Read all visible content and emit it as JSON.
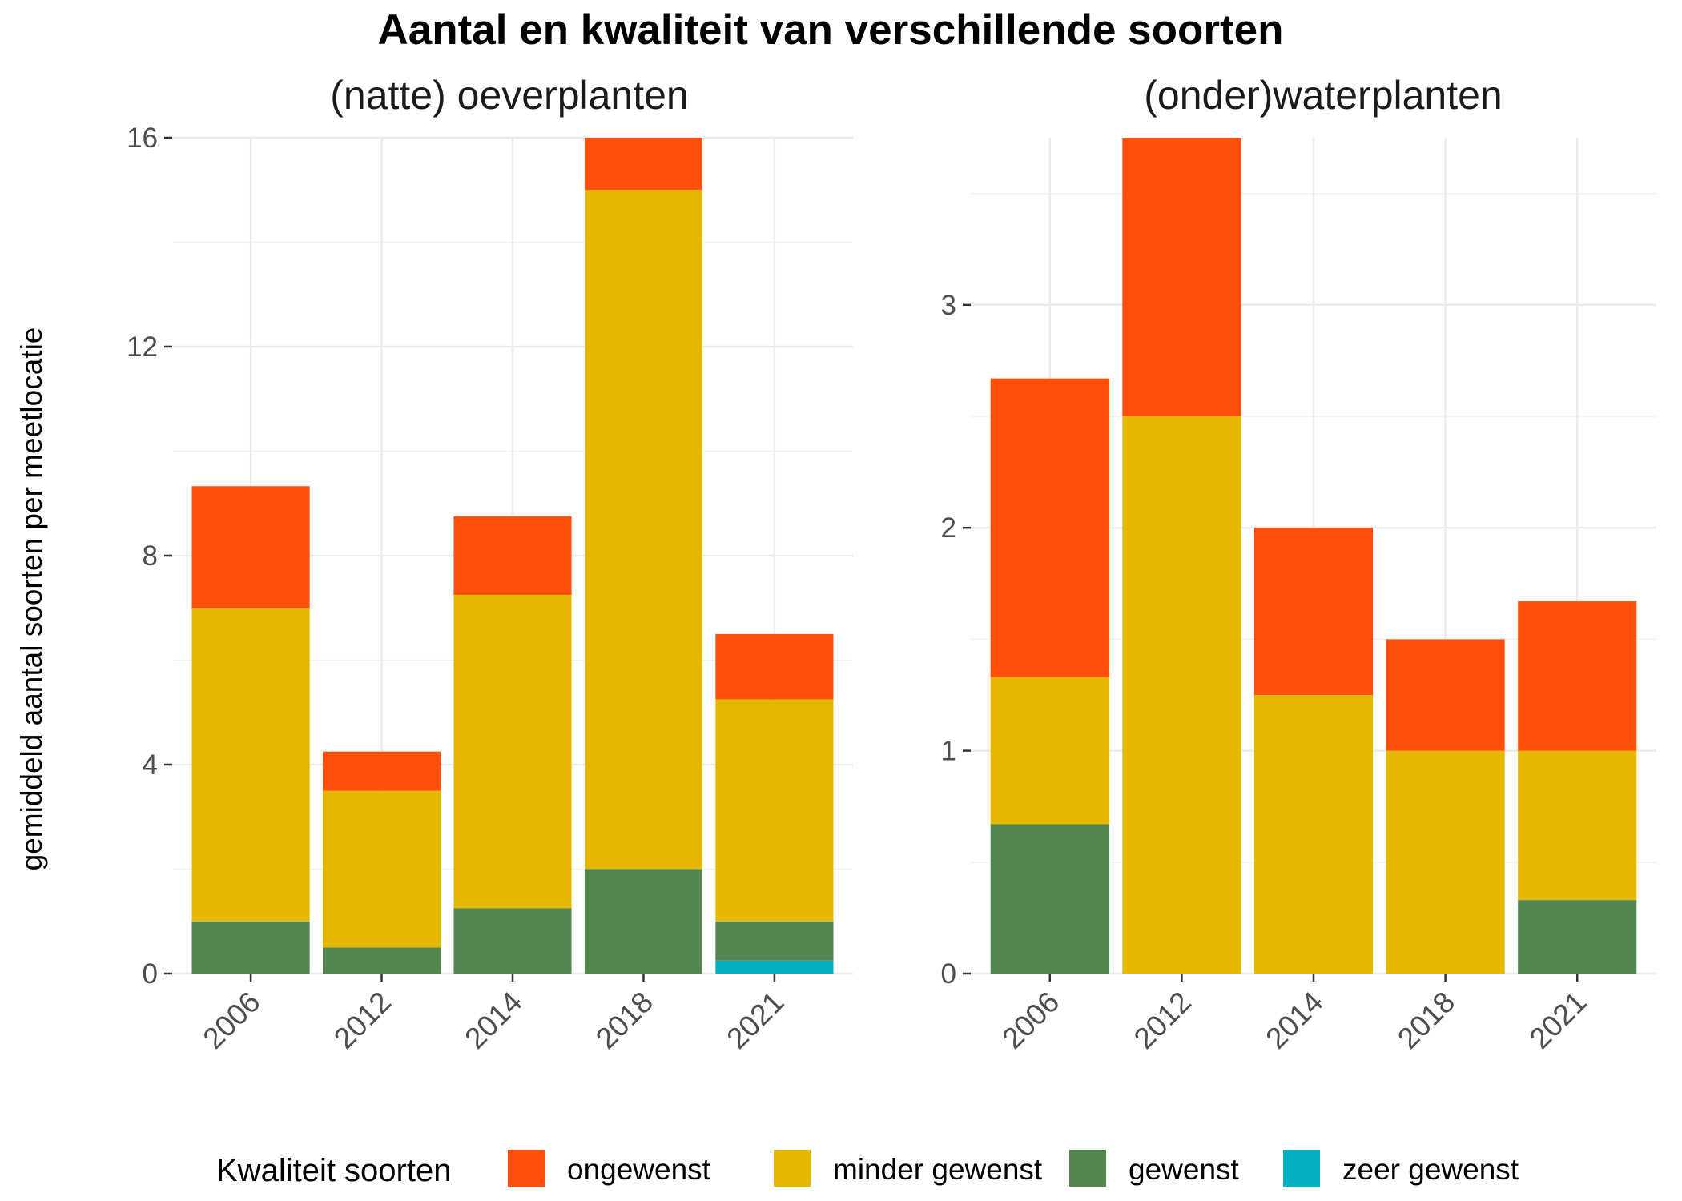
{
  "title": "Aantal en kwaliteit van verschillende soorten",
  "ylabel": "gemiddeld aantal soorten per meetlocatie",
  "legend": {
    "title": "Kwaliteit soorten",
    "position": "bottom",
    "entries": [
      {
        "label": "ongewenst",
        "color": "#FF4F0A"
      },
      {
        "label": "minder gewenst",
        "color": "#E5B800"
      },
      {
        "label": "gewenst",
        "color": "#53874F"
      },
      {
        "label": "zeer gewenst",
        "color": "#00B0C0"
      }
    ]
  },
  "chart_data": [
    {
      "type": "bar",
      "stacked": true,
      "title": "(natte) oeverplanten",
      "xlabel": "",
      "ylabel": "gemiddeld aantal soorten per meetlocatie",
      "categories": [
        "2006",
        "2012",
        "2014",
        "2018",
        "2021"
      ],
      "ylim": [
        0,
        16
      ],
      "yticks": [
        0,
        4,
        8,
        12,
        16
      ],
      "ytick_labels": [
        "0",
        "4",
        "8",
        "12",
        "16"
      ],
      "grid": true,
      "series": [
        {
          "name": "zeer gewenst",
          "color": "#00B0C0",
          "values": [
            0,
            0,
            0,
            0,
            0.25
          ]
        },
        {
          "name": "gewenst",
          "color": "#53874F",
          "values": [
            1.0,
            0.5,
            1.25,
            2.0,
            0.75
          ]
        },
        {
          "name": "minder gewenst",
          "color": "#E5B800",
          "values": [
            6.0,
            3.0,
            6.0,
            13.0,
            4.25
          ]
        },
        {
          "name": "ongewenst",
          "color": "#FF4F0A",
          "values": [
            2.33,
            0.75,
            1.5,
            1.0,
            1.25
          ]
        }
      ]
    },
    {
      "type": "bar",
      "stacked": true,
      "title": "(onder)waterplanten",
      "xlabel": "",
      "ylabel": "",
      "categories": [
        "2006",
        "2012",
        "2014",
        "2018",
        "2021"
      ],
      "ylim": [
        0,
        3.75
      ],
      "yticks": [
        0,
        1,
        2,
        3
      ],
      "ytick_labels": [
        "0",
        "1",
        "2",
        "3"
      ],
      "grid": true,
      "series": [
        {
          "name": "zeer gewenst",
          "color": "#00B0C0",
          "values": [
            0,
            0,
            0,
            0,
            0
          ]
        },
        {
          "name": "gewenst",
          "color": "#53874F",
          "values": [
            0.67,
            0,
            0,
            0,
            0.33
          ]
        },
        {
          "name": "minder gewenst",
          "color": "#E5B800",
          "values": [
            0.66,
            2.5,
            1.25,
            1.0,
            0.67
          ]
        },
        {
          "name": "ongewenst",
          "color": "#FF4F0A",
          "values": [
            1.34,
            1.25,
            0.75,
            0.5,
            0.67
          ]
        }
      ]
    }
  ]
}
